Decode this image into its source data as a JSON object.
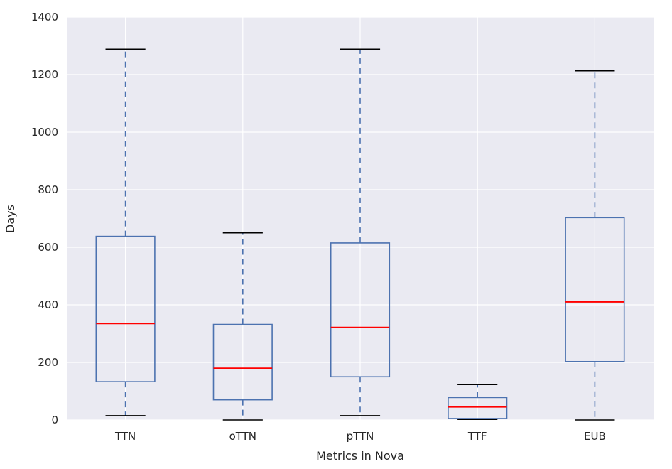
{
  "chart_data": {
    "type": "box",
    "xlabel": "Metrics in Nova",
    "ylabel": "Days",
    "ylim": [
      0,
      1400
    ],
    "yticks": [
      0,
      200,
      400,
      600,
      800,
      1000,
      1200,
      1400
    ],
    "grid": true,
    "categories": [
      "TTN",
      "oTTN",
      "pTTN",
      "TTF",
      "EUB"
    ],
    "boxes": [
      {
        "label": "TTN",
        "whisker_low": 15,
        "q1": 133,
        "median": 335,
        "q3": 638,
        "whisker_high": 1288
      },
      {
        "label": "oTTN",
        "whisker_low": 0,
        "q1": 70,
        "median": 180,
        "q3": 332,
        "whisker_high": 650
      },
      {
        "label": "pTTN",
        "whisker_low": 15,
        "q1": 150,
        "median": 322,
        "q3": 615,
        "whisker_high": 1288
      },
      {
        "label": "TTF",
        "whisker_low": 2,
        "q1": 5,
        "median": 45,
        "q3": 78,
        "whisker_high": 123
      },
      {
        "label": "EUB",
        "whisker_low": 0,
        "q1": 203,
        "median": 410,
        "q3": 703,
        "whisker_high": 1213
      }
    ],
    "colors": {
      "plot_background": "#eaeaf2",
      "grid": "#ffffff",
      "box": "#4c72b0",
      "median": "#ff0000",
      "cap": "#000000"
    }
  }
}
